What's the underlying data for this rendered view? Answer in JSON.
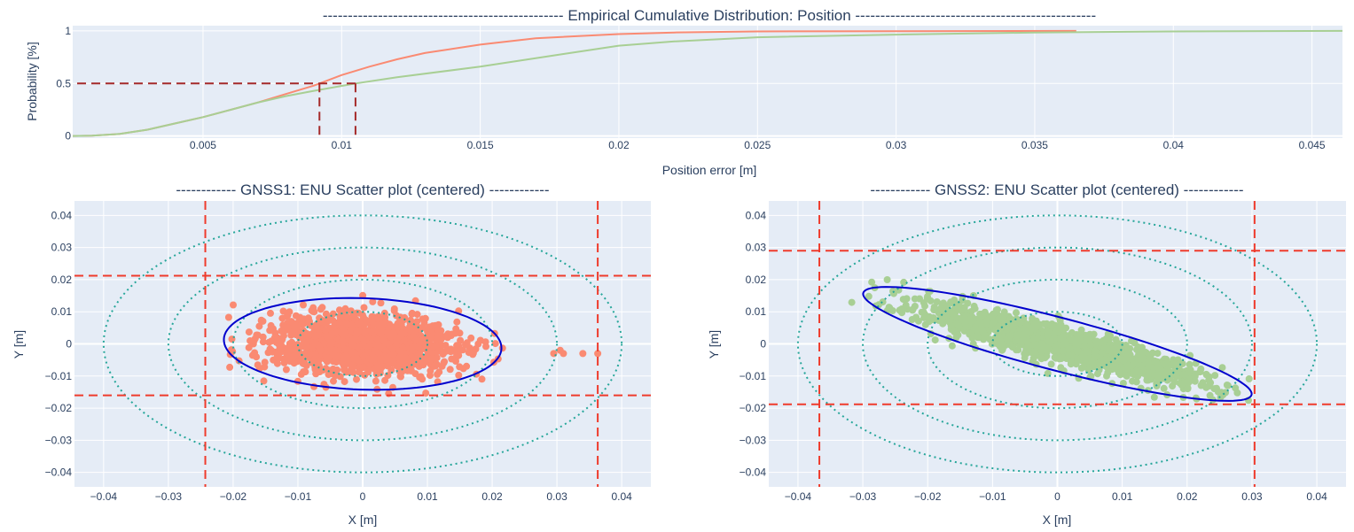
{
  "chart_data": [
    {
      "id": "ecdf",
      "type": "line",
      "title": "------------------------------------------------  Empirical Cumulative Distribution: Position  ------------------------------------------------",
      "xlabel": "Position error [m]",
      "ylabel": "Probability [%]",
      "xlim": [
        0.0003,
        0.0461
      ],
      "ylim": [
        -0.02,
        1.05
      ],
      "xticks": [
        0.005,
        0.01,
        0.015,
        0.02,
        0.025,
        0.03,
        0.035,
        0.04,
        0.045
      ],
      "xtick_labels": [
        "0.005",
        "0.01",
        "0.015",
        "0.02",
        "0.025",
        "0.03",
        "0.035",
        "0.04",
        "0.045"
      ],
      "yticks": [
        0,
        0.5,
        1
      ],
      "ytick_labels": [
        "0",
        "0.5",
        "1"
      ],
      "grid": true,
      "series": [
        {
          "name": "GNSS1",
          "color": "#fa8a72",
          "x": [
            0.0003,
            0.001,
            0.002,
            0.003,
            0.004,
            0.005,
            0.006,
            0.007,
            0.008,
            0.009,
            0.0092,
            0.01,
            0.011,
            0.012,
            0.013,
            0.015,
            0.017,
            0.02,
            0.022,
            0.025,
            0.03,
            0.0365
          ],
          "y": [
            0,
            0.003,
            0.02,
            0.06,
            0.12,
            0.18,
            0.25,
            0.32,
            0.4,
            0.48,
            0.5,
            0.58,
            0.66,
            0.73,
            0.79,
            0.87,
            0.93,
            0.97,
            0.985,
            0.995,
            0.998,
            1.0
          ]
        },
        {
          "name": "GNSS2",
          "color": "#a8cf94",
          "x": [
            0.0003,
            0.001,
            0.002,
            0.003,
            0.004,
            0.005,
            0.006,
            0.007,
            0.008,
            0.009,
            0.0105,
            0.012,
            0.015,
            0.018,
            0.02,
            0.022,
            0.025,
            0.03,
            0.035,
            0.04,
            0.0461
          ],
          "y": [
            0,
            0.003,
            0.02,
            0.06,
            0.12,
            0.18,
            0.25,
            0.32,
            0.38,
            0.43,
            0.5,
            0.56,
            0.66,
            0.78,
            0.86,
            0.9,
            0.94,
            0.965,
            0.985,
            0.995,
            1.0
          ]
        }
      ],
      "median_markers": {
        "color": "#a52a2a",
        "probability": 0.5,
        "x_values": [
          0.0092,
          0.0105
        ]
      }
    },
    {
      "id": "gnss1",
      "type": "scatter",
      "title": "------------ GNSS1: ENU Scatter plot (centered) ------------",
      "xlabel": "X [m]",
      "ylabel": "Y [m]",
      "xlim": [
        -0.0445,
        0.0445
      ],
      "ylim": [
        -0.0445,
        0.0445
      ],
      "ticks": [
        -0.04,
        -0.03,
        -0.02,
        -0.01,
        0,
        0.01,
        0.02,
        0.03,
        0.04
      ],
      "tick_labels": [
        "−0.04",
        "−0.03",
        "−0.02",
        "−0.01",
        "0",
        "0.01",
        "0.02",
        "0.03",
        "0.04"
      ],
      "grid": true,
      "point_color": "#fa8a72",
      "cluster": {
        "center": [
          0.0,
          0.0
        ],
        "spread_x": 0.0075,
        "spread_y": 0.0045,
        "rotation_deg": -5,
        "x_range": [
          -0.0245,
          0.022
        ],
        "y_range": [
          -0.016,
          0.021
        ]
      },
      "outliers": [
        [
          0.0295,
          -0.003
        ],
        [
          0.0305,
          -0.002
        ],
        [
          0.031,
          -0.003
        ],
        [
          0.034,
          -0.003
        ],
        [
          0.0363,
          -0.003
        ]
      ],
      "error_ellipse": {
        "center": [
          0.0,
          0.0
        ],
        "semi_major": 0.0215,
        "semi_minor": 0.0142,
        "angle_deg": -6,
        "color": "#0000cd"
      },
      "circles": {
        "radii": [
          0.01,
          0.02,
          0.03,
          0.04
        ],
        "color": "#26a69a"
      },
      "bounds_lines": {
        "x": [
          -0.0243,
          0.0363
        ],
        "y": [
          -0.016,
          0.0212
        ],
        "color": "#ef3b2c"
      }
    },
    {
      "id": "gnss2",
      "type": "scatter",
      "title": "------------ GNSS2: ENU Scatter plot (centered) ------------",
      "xlabel": "X [m]",
      "ylabel": "Y [m]",
      "xlim": [
        -0.0445,
        0.0445
      ],
      "ylim": [
        -0.0445,
        0.0445
      ],
      "ticks": [
        -0.04,
        -0.03,
        -0.02,
        -0.01,
        0,
        0.01,
        0.02,
        0.03,
        0.04
      ],
      "tick_labels": [
        "−0.04",
        "−0.03",
        "−0.02",
        "−0.01",
        "0",
        "0.01",
        "0.02",
        "0.03",
        "0.04"
      ],
      "grid": true,
      "point_color": "#a8cf94",
      "cluster": {
        "center": [
          0.0,
          0.0
        ],
        "spread_x": 0.013,
        "spread_y": 0.0025,
        "rotation_deg": -28,
        "x_range": [
          -0.0365,
          0.0305
        ],
        "y_range": [
          -0.019,
          0.029
        ]
      },
      "outliers": [],
      "error_ellipse": {
        "center": [
          0.0,
          0.0
        ],
        "semi_major": 0.034,
        "semi_minor": 0.0075,
        "angle_deg": -29,
        "color": "#0000cd"
      },
      "circles": {
        "radii": [
          0.01,
          0.02,
          0.03,
          0.04
        ],
        "color": "#26a69a"
      },
      "bounds_lines": {
        "x": [
          -0.0367,
          0.0304
        ],
        "y": [
          -0.0188,
          0.029
        ],
        "color": "#ef3b2c"
      }
    }
  ],
  "theme": {
    "plot_bg": "#e5ecf6",
    "grid_color": "#ffffff",
    "text_color": "#2a3f5f"
  }
}
